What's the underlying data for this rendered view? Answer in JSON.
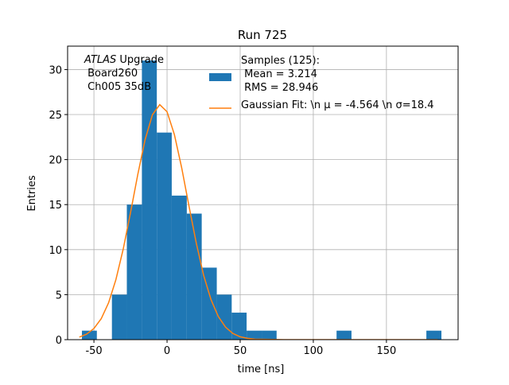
{
  "chart_data": {
    "type": "histogram",
    "title": "Run 725",
    "x_label": "time [ns]",
    "y_label": "Entries",
    "annotation": {
      "emphasis": "ATLAS",
      "lines": [
        " Upgrade",
        " Board260",
        " Ch005 35dB"
      ]
    },
    "bins": [
      -58.2,
      -48.0,
      -37.7,
      -27.5,
      -17.2,
      -7.0,
      3.2,
      13.5,
      23.7,
      34.0,
      44.2,
      54.4,
      64.7,
      74.9,
      85.2,
      95.4,
      105.6,
      115.9,
      126.1,
      136.4,
      146.6,
      156.8,
      167.1,
      177.3,
      187.6
    ],
    "series": [
      {
        "name": "Samples (125):\n Mean = 3.214\n RMS = 28.946",
        "color": "#1f77b4",
        "values": [
          1,
          0,
          5,
          15,
          31,
          23,
          16,
          14,
          8,
          5,
          3,
          1,
          1,
          0,
          0,
          0,
          0,
          1,
          0,
          0,
          0,
          0,
          0,
          1
        ]
      },
      {
        "name": "Gaussian Fit: \\n μ = -4.564 \\n σ=18.4",
        "color": "#ff7f0e",
        "type": "line",
        "x": [
          -60,
          -55,
          -50,
          -45,
          -40,
          -35,
          -30,
          -25,
          -20,
          -15,
          -10,
          -5,
          0,
          5,
          10,
          15,
          20,
          25,
          30,
          35,
          40,
          45,
          50,
          55,
          60,
          80,
          120,
          185
        ],
        "values": [
          0.28,
          0.61,
          1.24,
          2.33,
          4.09,
          6.65,
          10.04,
          14.09,
          18.35,
          22.22,
          24.98,
          26.1,
          25.31,
          22.79,
          19.09,
          14.83,
          10.71,
          7.15,
          4.47,
          2.58,
          1.39,
          0.69,
          0.32,
          0.14,
          0.06,
          0,
          0,
          0
        ]
      }
    ],
    "xlim": [
      -68,
      199
    ],
    "ylim": [
      0,
      32.6
    ],
    "xticks": [
      -50,
      0,
      50,
      100,
      150
    ],
    "yticks": [
      0,
      5,
      10,
      15,
      20,
      25,
      30
    ],
    "grid": true,
    "legend": "upper right"
  }
}
